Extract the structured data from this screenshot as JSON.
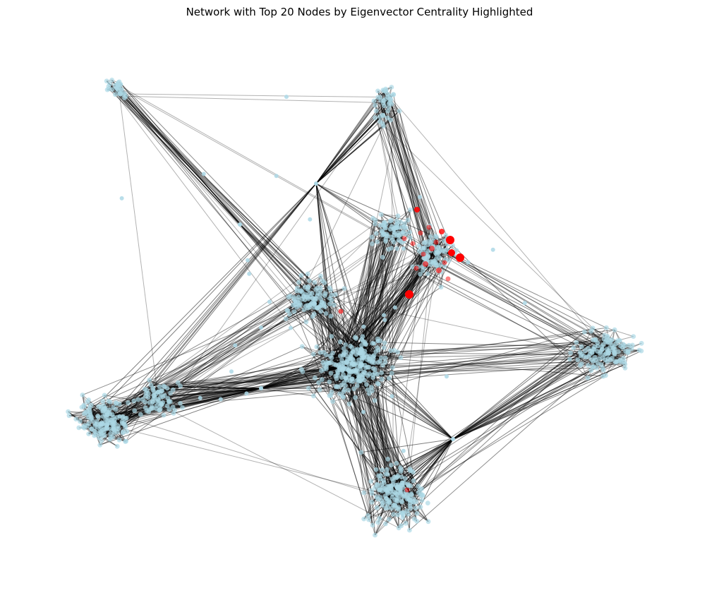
{
  "figure": {
    "title": "Network with Top 20 Nodes by Eigenvector Centrality Highlighted"
  },
  "colors": {
    "node": "#add8e6",
    "highlight": "#ff0000",
    "edge": "#000000",
    "background": "#ffffff"
  },
  "network": {
    "highlighted_count": 20
  }
}
